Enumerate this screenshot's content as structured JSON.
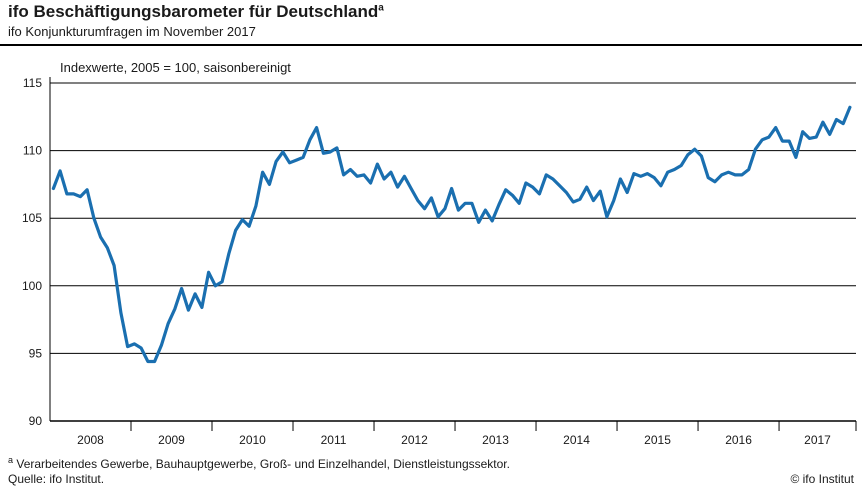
{
  "header": {
    "title": "ifo Beschäftigungsbarometer für Deutschland",
    "title_marker": "a",
    "subtitle": "ifo Konjunkturumfragen im November 2017"
  },
  "footer": {
    "footnote_marker": "a",
    "footnote": " Verarbeitendes Gewerbe, Bauhauptgewerbe, Groß- und Einzelhandel, Dienstleistungssektor.",
    "source": "Quelle: ifo Institut.",
    "copyright": "© ifo Institut"
  },
  "colors": {
    "line": "#1a6fb0",
    "grid": "#000000"
  },
  "chart_data": {
    "type": "line",
    "unit_note": "Indexwerte, 2005 = 100, saisonbereinigt",
    "ylim": [
      90,
      115
    ],
    "yticks": [
      90,
      95,
      100,
      105,
      110,
      115
    ],
    "grid": true,
    "xlim": [
      2008.0,
      2017.95
    ],
    "year_labels": [
      "2008",
      "2009",
      "2010",
      "2011",
      "2012",
      "2013",
      "2014",
      "2015",
      "2016",
      "2017"
    ],
    "start": "2008-01",
    "frequency": "monthly",
    "series": [
      {
        "values": [
          107.2,
          108.5,
          106.8,
          106.8,
          106.6,
          107.1,
          105.0,
          103.6,
          102.8,
          101.5,
          98.0,
          95.5,
          95.7,
          95.4,
          94.4,
          94.4,
          95.6,
          97.2,
          98.3,
          99.8,
          98.2,
          99.4,
          98.4,
          101.0,
          100.0,
          100.3,
          102.4,
          104.1,
          104.9,
          104.4,
          105.9,
          108.4,
          107.5,
          109.2,
          109.9,
          109.1,
          109.3,
          109.5,
          110.8,
          111.7,
          109.8,
          109.9,
          110.2,
          108.2,
          108.6,
          108.1,
          108.2,
          107.6,
          109.0,
          107.9,
          108.4,
          107.3,
          108.1,
          107.2,
          106.3,
          105.7,
          106.5,
          105.1,
          105.7,
          107.2,
          105.6,
          106.1,
          106.1,
          104.7,
          105.6,
          104.8,
          106.0,
          107.1,
          106.7,
          106.1,
          107.6,
          107.3,
          106.8,
          108.2,
          107.9,
          107.4,
          106.9,
          106.2,
          106.4,
          107.3,
          106.3,
          107.0,
          105.1,
          106.3,
          107.9,
          106.9,
          108.3,
          108.1,
          108.3,
          108.0,
          107.4,
          108.4,
          108.6,
          108.9,
          109.7,
          110.1,
          109.6,
          108.0,
          107.7,
          108.2,
          108.4,
          108.2,
          108.2,
          108.6,
          110.1,
          110.8,
          111.0,
          111.7,
          110.7,
          110.7,
          109.5,
          111.4,
          110.9,
          111.0,
          112.1,
          111.2,
          112.3,
          112.0,
          113.2
        ]
      }
    ]
  }
}
